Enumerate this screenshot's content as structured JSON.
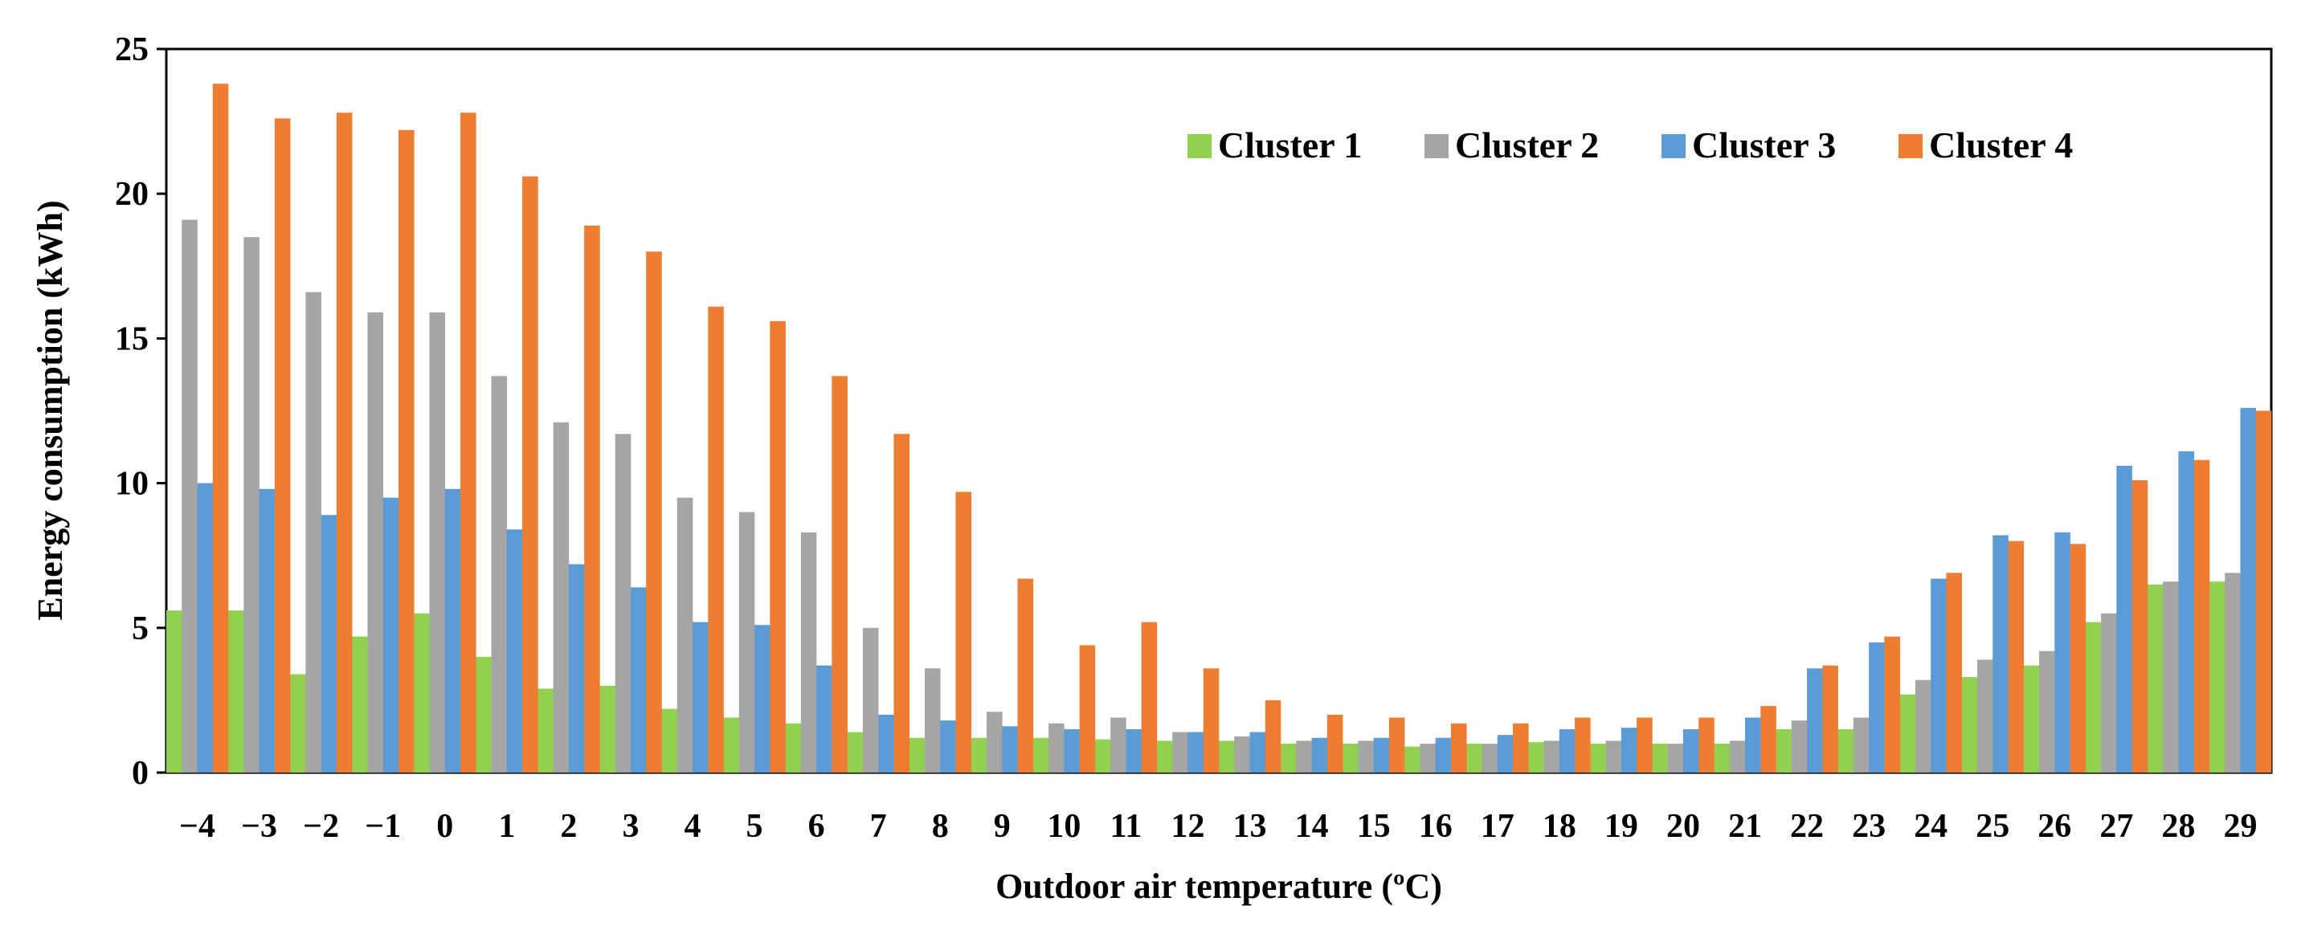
{
  "chart_data": {
    "type": "bar",
    "title": "",
    "xlabel": "Outdoor air temperature (ºC)",
    "ylabel": "Energy consumption (kWh)",
    "ylim": [
      0,
      25
    ],
    "yticks": [
      "0",
      "5",
      "10",
      "15",
      "20",
      "25"
    ],
    "grid": false,
    "legend_position": "top-right",
    "categories": [
      "−4",
      "−3",
      "−2",
      "−1",
      "0",
      "1",
      "2",
      "3",
      "4",
      "5",
      "6",
      "7",
      "8",
      "9",
      "10",
      "11",
      "12",
      "13",
      "14",
      "15",
      "16",
      "17",
      "18",
      "19",
      "20",
      "21",
      "22",
      "23",
      "24",
      "25",
      "26",
      "27",
      "28",
      "29"
    ],
    "series": [
      {
        "name": "Cluster 1",
        "color": "#92d050",
        "values": [
          5.6,
          5.6,
          3.4,
          4.7,
          5.5,
          4.0,
          2.9,
          3.0,
          2.2,
          1.9,
          1.7,
          1.4,
          1.2,
          1.2,
          1.2,
          1.15,
          1.1,
          1.1,
          1.0,
          1.0,
          0.9,
          1.0,
          1.05,
          1.0,
          1.0,
          1.0,
          1.5,
          1.5,
          2.7,
          3.3,
          3.7,
          5.2,
          6.5,
          6.6
        ]
      },
      {
        "name": "Cluster 2",
        "color": "#a5a5a5",
        "values": [
          19.1,
          18.5,
          16.6,
          15.9,
          15.9,
          13.7,
          12.1,
          11.7,
          9.5,
          9.0,
          8.3,
          5.0,
          3.6,
          2.1,
          1.7,
          1.9,
          1.4,
          1.25,
          1.1,
          1.1,
          1.0,
          1.0,
          1.1,
          1.1,
          1.0,
          1.1,
          1.8,
          1.9,
          3.2,
          3.9,
          4.2,
          5.5,
          6.6,
          6.9
        ]
      },
      {
        "name": "Cluster 3",
        "color": "#5b9bd5",
        "values": [
          10.0,
          9.8,
          8.9,
          9.5,
          9.8,
          8.4,
          7.2,
          6.4,
          5.2,
          5.1,
          3.7,
          2.0,
          1.8,
          1.6,
          1.5,
          1.5,
          1.4,
          1.4,
          1.2,
          1.2,
          1.2,
          1.3,
          1.5,
          1.55,
          1.5,
          1.9,
          3.6,
          4.5,
          6.7,
          8.2,
          8.3,
          10.6,
          11.1,
          12.6
        ]
      },
      {
        "name": "Cluster 4",
        "color": "#ed7d31",
        "values": [
          23.8,
          22.6,
          22.8,
          22.2,
          22.8,
          20.6,
          18.9,
          18.0,
          16.1,
          15.6,
          13.7,
          11.7,
          9.7,
          6.7,
          4.4,
          5.2,
          3.6,
          2.5,
          2.0,
          1.9,
          1.7,
          1.7,
          1.9,
          1.9,
          1.9,
          2.3,
          3.7,
          4.7,
          6.9,
          8.0,
          7.9,
          10.1,
          10.8,
          12.5
        ]
      }
    ]
  }
}
